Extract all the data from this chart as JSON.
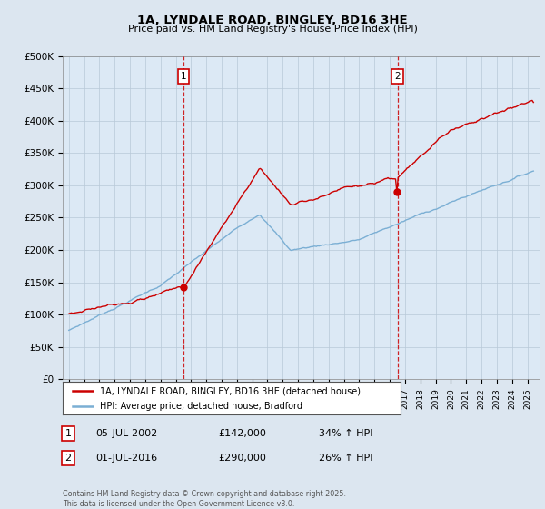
{
  "title": "1A, LYNDALE ROAD, BINGLEY, BD16 3HE",
  "subtitle": "Price paid vs. HM Land Registry's House Price Index (HPI)",
  "ylabel_ticks": [
    "£0",
    "£50K",
    "£100K",
    "£150K",
    "£200K",
    "£250K",
    "£300K",
    "£350K",
    "£400K",
    "£450K",
    "£500K"
  ],
  "ytick_vals": [
    0,
    50000,
    100000,
    150000,
    200000,
    250000,
    300000,
    350000,
    400000,
    450000,
    500000
  ],
  "ylim": [
    0,
    500000
  ],
  "xlim_start": 1994.6,
  "xlim_end": 2025.8,
  "vline1_x": 2002.5,
  "vline2_x": 2016.5,
  "marker1_label": "1",
  "marker2_label": "2",
  "legend_line1": "1A, LYNDALE ROAD, BINGLEY, BD16 3HE (detached house)",
  "legend_line2": "HPI: Average price, detached house, Bradford",
  "sale1_label": "1",
  "sale1_date": "05-JUL-2002",
  "sale1_price": "£142,000",
  "sale1_hpi": "34% ↑ HPI",
  "sale2_label": "2",
  "sale2_date": "01-JUL-2016",
  "sale2_price": "£290,000",
  "sale2_hpi": "26% ↑ HPI",
  "copyright": "Contains HM Land Registry data © Crown copyright and database right 2025.\nThis data is licensed under the Open Government Licence v3.0.",
  "red_color": "#cc0000",
  "blue_color": "#7bafd4",
  "bg_color": "#dce6f0",
  "plot_bg": "#dce9f5",
  "grid_color": "#b8c8d8"
}
